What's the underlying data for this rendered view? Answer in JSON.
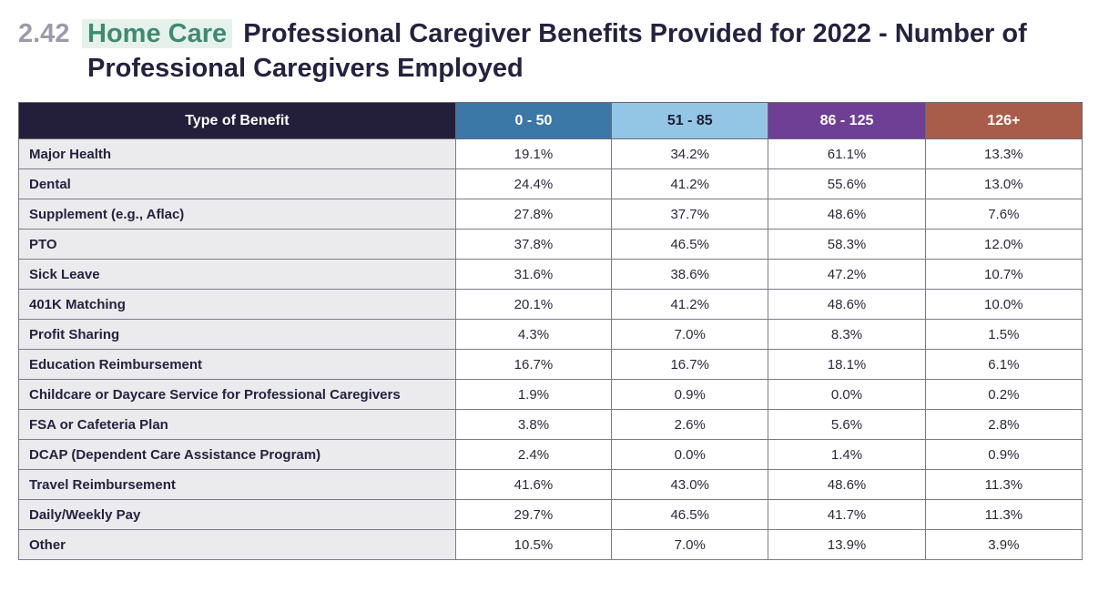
{
  "heading": {
    "number": "2.42",
    "tag": "Home Care",
    "title_line1": "Professional Caregiver Benefits Provided for 2022 - Number of",
    "title_line2": "Professional Caregivers Employed"
  },
  "colors": {
    "header_label": "#231f3a",
    "col_0_50": "#3b77a7",
    "col_51_85": "#92c6e4",
    "col_86_125": "#6f3f95",
    "col_126_plus": "#a85d4a",
    "tag_highlight": "#e6f1ec"
  },
  "table": {
    "columns": [
      "Type of Benefit",
      "0 - 50",
      "51 - 85",
      "86 - 125",
      "126+"
    ],
    "rows": [
      [
        "Major Health",
        "19.1%",
        "34.2%",
        "61.1%",
        "13.3%"
      ],
      [
        "Dental",
        "24.4%",
        "41.2%",
        "55.6%",
        "13.0%"
      ],
      [
        "Supplement (e.g., Aflac)",
        "27.8%",
        "37.7%",
        "48.6%",
        "7.6%"
      ],
      [
        "PTO",
        "37.8%",
        "46.5%",
        "58.3%",
        "12.0%"
      ],
      [
        "Sick Leave",
        "31.6%",
        "38.6%",
        "47.2%",
        "10.7%"
      ],
      [
        "401K Matching",
        "20.1%",
        "41.2%",
        "48.6%",
        "10.0%"
      ],
      [
        "Profit Sharing",
        "4.3%",
        "7.0%",
        "8.3%",
        "1.5%"
      ],
      [
        "Education Reimbursement",
        "16.7%",
        "16.7%",
        "18.1%",
        "6.1%"
      ],
      [
        "Childcare or Daycare Service for Professional Caregivers",
        "1.9%",
        "0.9%",
        "0.0%",
        "0.2%"
      ],
      [
        "FSA or Cafeteria Plan",
        "3.8%",
        "2.6%",
        "5.6%",
        "2.8%"
      ],
      [
        "DCAP (Dependent Care Assistance Program)",
        "2.4%",
        "0.0%",
        "1.4%",
        "0.9%"
      ],
      [
        "Travel Reimbursement",
        "41.6%",
        "43.0%",
        "48.6%",
        "11.3%"
      ],
      [
        "Daily/Weekly Pay",
        "29.7%",
        "46.5%",
        "41.7%",
        "11.3%"
      ],
      [
        "Other",
        "10.5%",
        "7.0%",
        "13.9%",
        "3.9%"
      ]
    ]
  }
}
